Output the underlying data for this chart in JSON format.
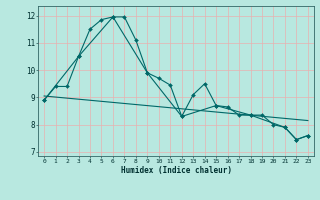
{
  "xlabel": "Humidex (Indice chaleur)",
  "bg_color": "#b8e8e0",
  "grid_color": "#e8b0b0",
  "line_color": "#006868",
  "xlim": [
    -0.5,
    23.5
  ],
  "ylim": [
    6.85,
    12.35
  ],
  "yticks": [
    7,
    8,
    9,
    10,
    11,
    12
  ],
  "xticks": [
    0,
    1,
    2,
    3,
    4,
    5,
    6,
    7,
    8,
    9,
    10,
    11,
    12,
    13,
    14,
    15,
    16,
    17,
    18,
    19,
    20,
    21,
    22,
    23
  ],
  "line1_x": [
    0,
    1,
    2,
    3,
    4,
    5,
    6,
    7,
    8,
    9,
    10,
    11,
    12,
    13,
    14,
    15,
    16,
    17,
    18,
    19,
    20,
    21,
    22,
    23
  ],
  "line1_y": [
    8.9,
    9.4,
    9.4,
    10.5,
    11.5,
    11.85,
    11.95,
    11.95,
    11.1,
    9.9,
    9.7,
    9.45,
    8.3,
    9.1,
    9.5,
    8.7,
    8.65,
    8.35,
    8.35,
    8.35,
    8.0,
    7.9,
    7.45,
    7.6
  ],
  "line2_x": [
    0,
    3,
    6,
    9,
    12,
    15,
    18,
    21,
    22,
    23
  ],
  "line2_y": [
    8.9,
    10.5,
    11.95,
    9.9,
    8.3,
    8.7,
    8.35,
    7.9,
    7.45,
    7.6
  ],
  "line3_x": [
    0,
    23
  ],
  "line3_y": [
    9.05,
    8.15
  ],
  "markersize": 2.0,
  "linewidth": 0.8
}
